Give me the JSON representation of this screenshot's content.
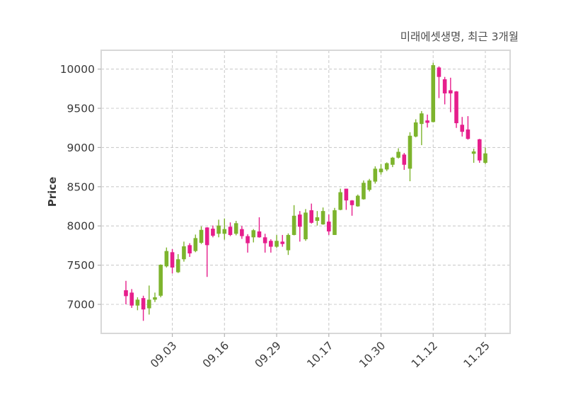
{
  "header": {
    "title": "미래에셋생명, 최근 3개월"
  },
  "colors": {
    "up": "#7DB42D",
    "down": "#E61E8C",
    "grid": "#cccccc",
    "plot_border": "#d8d8d8",
    "tick_text": "#3a3a3a",
    "title_text": "#4d4d4d",
    "background": "#ffffff"
  },
  "chart_data": {
    "type": "candlestick",
    "title": "미래에셋생명, 최근 3개월",
    "xlabel": "",
    "ylabel": "Price",
    "grid": "dashed",
    "legend": "none",
    "y_ticks": [
      7000,
      7500,
      8000,
      8500,
      9000,
      9500,
      10000
    ],
    "y_domain": [
      6630,
      10240
    ],
    "x_tick_labels": [
      "09.03",
      "09.16",
      "09.29",
      "10.17",
      "10.30",
      "11.12",
      "11.25"
    ],
    "x_tick_indices": [
      8,
      17,
      26,
      35,
      44,
      53,
      62
    ],
    "candles_format": [
      "open",
      "high",
      "low",
      "close"
    ],
    "candles": [
      [
        7180,
        7300,
        7000,
        7105
      ],
      [
        7150,
        7195,
        6955,
        6985
      ],
      [
        6985,
        7090,
        6925,
        7060
      ],
      [
        7080,
        7110,
        6790,
        6935
      ],
      [
        6950,
        7240,
        6870,
        7060
      ],
      [
        7060,
        7150,
        7030,
        7090
      ],
      [
        7110,
        7510,
        7090,
        7505
      ],
      [
        7485,
        7725,
        7470,
        7680
      ],
      [
        7665,
        7705,
        7395,
        7470
      ],
      [
        7410,
        7640,
        7400,
        7575
      ],
      [
        7575,
        7800,
        7545,
        7740
      ],
      [
        7755,
        7780,
        7605,
        7650
      ],
      [
        7680,
        7890,
        7665,
        7845
      ],
      [
        7785,
        7995,
        7770,
        7950
      ],
      [
        7980,
        7985,
        7350,
        7755
      ],
      [
        7965,
        8005,
        7855,
        7875
      ],
      [
        7900,
        8080,
        7855,
        8005
      ],
      [
        7900,
        8095,
        7825,
        7960
      ],
      [
        7990,
        8045,
        7870,
        7885
      ],
      [
        7900,
        8065,
        7880,
        8035
      ],
      [
        7960,
        8000,
        7835,
        7870
      ],
      [
        7870,
        7895,
        7660,
        7780
      ],
      [
        7855,
        7960,
        7790,
        7945
      ],
      [
        7930,
        8110,
        7850,
        7855
      ],
      [
        7855,
        7900,
        7660,
        7780
      ],
      [
        7810,
        7830,
        7660,
        7735
      ],
      [
        7735,
        7885,
        7720,
        7810
      ],
      [
        7800,
        7885,
        7735,
        7770
      ],
      [
        7690,
        7905,
        7630,
        7885
      ],
      [
        7885,
        8265,
        7880,
        8130
      ],
      [
        8145,
        8190,
        7800,
        7990
      ],
      [
        7830,
        8215,
        7810,
        8170
      ],
      [
        8200,
        8285,
        8030,
        8040
      ],
      [
        8065,
        8190,
        8005,
        8110
      ],
      [
        8020,
        8235,
        8015,
        8190
      ],
      [
        8055,
        8145,
        7885,
        7930
      ],
      [
        7885,
        8230,
        7885,
        8200
      ],
      [
        8205,
        8475,
        8200,
        8430
      ],
      [
        8475,
        8475,
        8205,
        8325
      ],
      [
        8325,
        8330,
        8130,
        8265
      ],
      [
        8250,
        8400,
        8245,
        8385
      ],
      [
        8340,
        8580,
        8335,
        8550
      ],
      [
        8460,
        8600,
        8440,
        8580
      ],
      [
        8565,
        8760,
        8540,
        8730
      ],
      [
        8685,
        8790,
        8655,
        8730
      ],
      [
        8720,
        8810,
        8700,
        8800
      ],
      [
        8780,
        8880,
        8750,
        8870
      ],
      [
        8870,
        8990,
        8860,
        8945
      ],
      [
        8910,
        8930,
        8715,
        8780
      ],
      [
        8730,
        9195,
        8570,
        9150
      ],
      [
        9140,
        9360,
        9130,
        9320
      ],
      [
        9300,
        9465,
        9030,
        9435
      ],
      [
        9345,
        9420,
        9255,
        9315
      ],
      [
        9325,
        10080,
        9320,
        10050
      ],
      [
        10020,
        10035,
        9630,
        9900
      ],
      [
        9870,
        9900,
        9550,
        9690
      ],
      [
        9730,
        9890,
        9450,
        9690
      ],
      [
        9715,
        9720,
        9250,
        9310
      ],
      [
        9290,
        9390,
        9140,
        9200
      ],
      [
        9230,
        9400,
        9100,
        9110
      ],
      [
        8920,
        8985,
        8805,
        8950
      ],
      [
        9105,
        9110,
        8805,
        8835
      ],
      [
        8805,
        9000,
        8790,
        8925
      ]
    ]
  }
}
